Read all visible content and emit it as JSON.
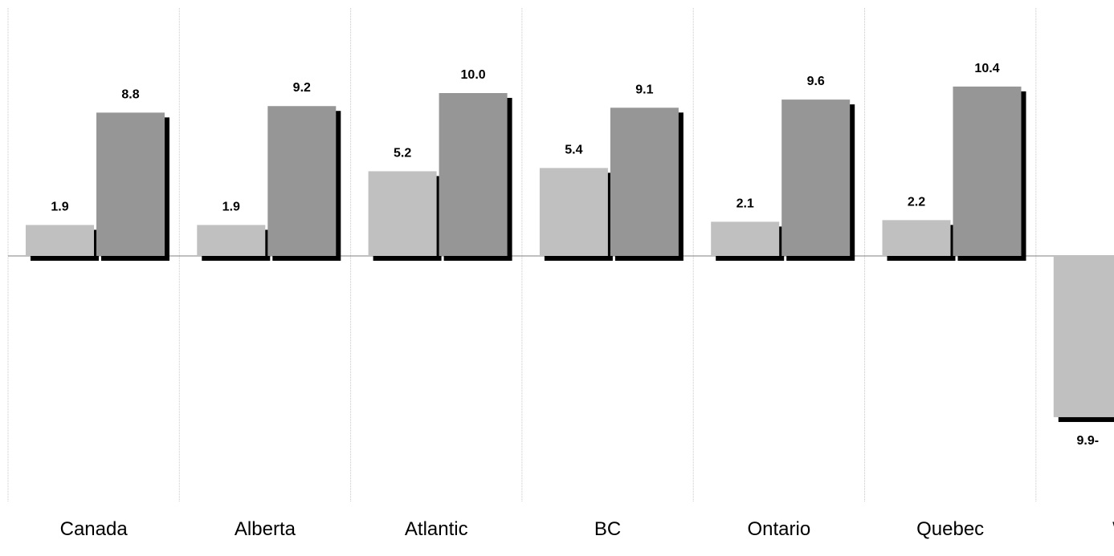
{
  "colors": {
    "background": "#ffffff",
    "series_light": "#c0c0c0",
    "series_dark": "#969696",
    "bar_shadow": "#000000",
    "zero_line": "#808080",
    "separator": "#c8c8c8",
    "text": "#000000"
  },
  "chart_data": {
    "type": "bar",
    "title": "",
    "xlabel": "",
    "ylabel": "",
    "ylim": [
      -12.5,
      17.5
    ],
    "grid": false,
    "legend": "none",
    "categories": [
      "Canada",
      "Alberta",
      "Atlantic",
      "BC",
      "Ontario",
      "Quebec",
      "W"
    ],
    "series": [
      {
        "color_key": "series_light",
        "values": [
          1.9,
          1.9,
          5.2,
          5.4,
          2.1,
          2.2,
          -9.9
        ],
        "labels": [
          "1.9",
          "1.9",
          "5.2",
          "5.4",
          "2.1",
          "2.2",
          "9.9-"
        ]
      },
      {
        "color_key": "series_dark",
        "values": [
          8.8,
          9.2,
          10.0,
          9.1,
          9.6,
          10.4,
          null
        ],
        "labels": [
          "8.8",
          "9.2",
          "10.0",
          "9.1",
          "9.6",
          "10.4",
          ""
        ]
      }
    ]
  }
}
